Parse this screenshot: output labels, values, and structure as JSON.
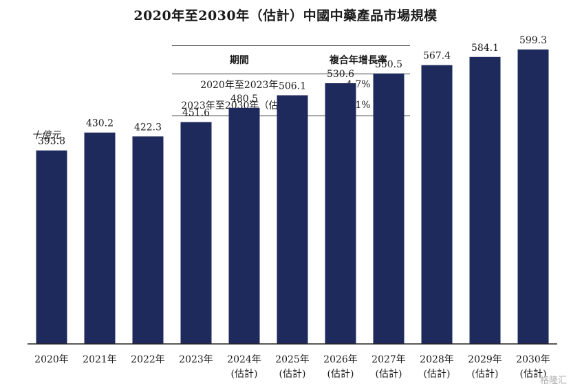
{
  "title": "2020年至2030年（估計）中國中藥產品市場規模",
  "cagr_table": {
    "headers": [
      "期間",
      "複合年增長率"
    ],
    "rows": [
      {
        "period": "2020年至2023年",
        "rate": "4.7%"
      },
      {
        "period": "2023年至2030年（估計）",
        "rate": "4.1%"
      }
    ]
  },
  "chart_data": {
    "type": "bar",
    "ylabel": "十億元",
    "categories": [
      "2020年",
      "2021年",
      "2022年",
      "2023年",
      "2024年",
      "2025年",
      "2026年",
      "2027年",
      "2028年",
      "2029年",
      "2030年"
    ],
    "category_notes": [
      "",
      "",
      "",
      "",
      "(估計)",
      "(估計)",
      "(估計)",
      "(估計)",
      "(估計)",
      "(估計)",
      "(估計)"
    ],
    "values": [
      393.8,
      430.2,
      422.3,
      451.6,
      480.5,
      506.1,
      530.6,
      550.5,
      567.4,
      584.1,
      599.3
    ],
    "value_labels": [
      "393.8",
      "430.2",
      "422.3",
      "451.6",
      "480.5",
      "506.1",
      "530.6",
      "550.5",
      "567.4",
      "584.1",
      "599.3"
    ],
    "ylim": [
      0,
      700
    ],
    "bar_color": "#1f2a5c",
    "grid": false
  },
  "watermark": "格隆汇"
}
